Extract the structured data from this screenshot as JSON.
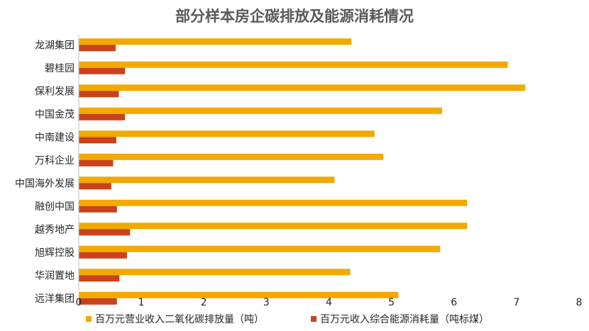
{
  "chart_data": {
    "type": "bar",
    "orientation": "horizontal",
    "title": "部分样本房企碳排放及能源消耗情况",
    "categories": [
      "龙湖集团",
      "碧桂园",
      "保利发展",
      "中国金茂",
      "中南建设",
      "万科企业",
      "中国海外发展",
      "融创中国",
      "越秀地产",
      "旭辉控股",
      "华润置地",
      "远洋集团"
    ],
    "series": [
      {
        "name": "百万元营业收入二氧化碳排放量（吨）",
        "color": "#F2A900",
        "values": [
          4.36,
          6.86,
          7.14,
          5.81,
          4.73,
          4.87,
          4.09,
          6.21,
          6.21,
          5.78,
          4.34,
          5.11
        ]
      },
      {
        "name": "百万元收入综合能源消耗量（吨标煤）",
        "color": "#C9421C",
        "values": [
          0.59,
          0.74,
          0.64,
          0.74,
          0.6,
          0.55,
          0.52,
          0.61,
          0.82,
          0.77,
          0.65,
          0.61
        ]
      }
    ],
    "xlim": [
      0,
      8
    ],
    "x_ticks": [
      "0",
      "1",
      "2",
      "3",
      "4",
      "5",
      "6",
      "7",
      "8"
    ],
    "xlabel": "",
    "ylabel": "",
    "grid": false,
    "legend_position": "bottom"
  }
}
